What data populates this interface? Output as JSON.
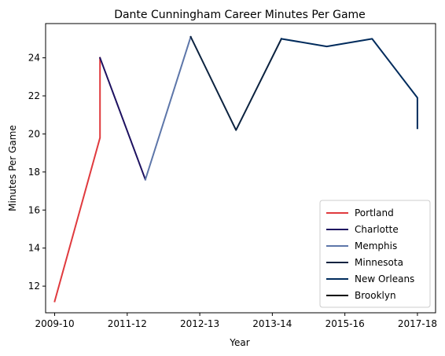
{
  "chart_data": {
    "type": "line",
    "title": "Dante Cunningham Career Minutes Per Game",
    "xlabel": "Year",
    "ylabel": "Minutes Per Game",
    "x_ticks": [
      "2009-10",
      "2011-12",
      "2012-13",
      "2013-14",
      "2015-16",
      "2017-18"
    ],
    "y_ticks": [
      12,
      14,
      16,
      18,
      20,
      22,
      24
    ],
    "xlim": [
      -0.2,
      8.4
    ],
    "ylim": [
      10.6,
      25.8
    ],
    "legend_position": "lower right",
    "grid": false,
    "series": [
      {
        "name": "Portland",
        "color": "#e03a3e",
        "points": [
          [
            0,
            11.2
          ],
          [
            1,
            19.8
          ],
          [
            1,
            24.0
          ]
        ]
      },
      {
        "name": "Charlotte",
        "color": "#1d1160",
        "points": [
          [
            1,
            24.0
          ],
          [
            2,
            17.6
          ]
        ]
      },
      {
        "name": "Memphis",
        "color": "#5d76a9",
        "points": [
          [
            2,
            17.6
          ],
          [
            3,
            25.1
          ]
        ]
      },
      {
        "name": "Minnesota",
        "color": "#0c2340",
        "points": [
          [
            3,
            25.1
          ],
          [
            4,
            20.2
          ],
          [
            5,
            25.0
          ]
        ]
      },
      {
        "name": "New Orleans",
        "color": "#002b5c",
        "points": [
          [
            5,
            25.0
          ],
          [
            6,
            24.6
          ],
          [
            7,
            25.0
          ],
          [
            8,
            21.9
          ],
          [
            8,
            20.3
          ]
        ]
      },
      {
        "name": "Brooklyn",
        "color": "#000000",
        "points": []
      }
    ]
  }
}
